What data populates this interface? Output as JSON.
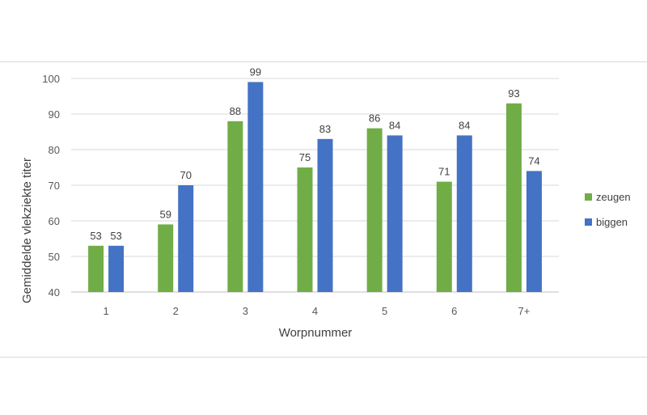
{
  "chart_data": {
    "type": "bar",
    "title": "",
    "xlabel": "Worpnummer",
    "ylabel": "Gemiddelde vlekziekte titer",
    "categories": [
      "1",
      "2",
      "3",
      "4",
      "5",
      "6",
      "7+"
    ],
    "series": [
      {
        "name": "zeugen",
        "color": "#70ad47",
        "values": [
          53,
          59,
          88,
          75,
          86,
          71,
          93
        ]
      },
      {
        "name": "biggen",
        "color": "#4472c4",
        "values": [
          53,
          70,
          99,
          83,
          84,
          84,
          74
        ]
      }
    ],
    "ylim": [
      40,
      100
    ],
    "yticks": [
      40,
      50,
      60,
      70,
      80,
      90,
      100
    ],
    "grid": true,
    "legend": "right"
  }
}
